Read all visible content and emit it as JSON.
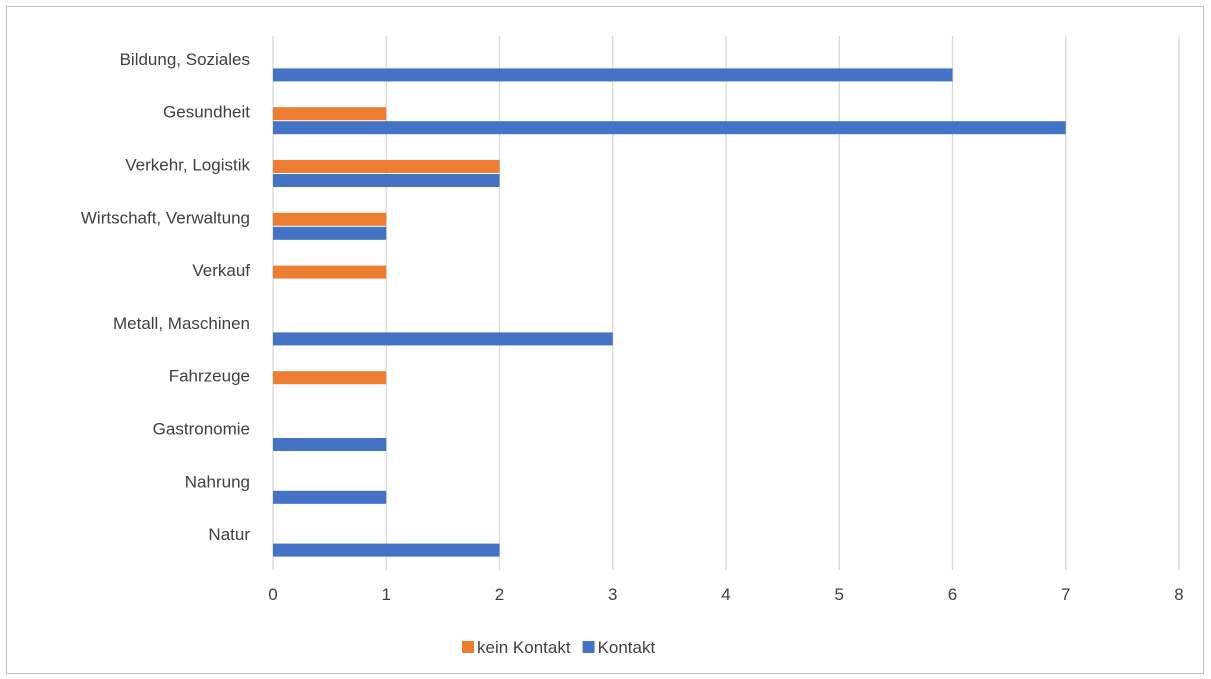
{
  "chart_data": {
    "type": "bar",
    "orientation": "horizontal",
    "categories": [
      "Bildung, Soziales",
      "Gesundheit",
      "Verkehr, Logistik",
      "Wirtschaft, Verwaltung",
      "Verkauf",
      "Metall, Maschinen",
      "Fahrzeuge",
      "Gastronomie",
      "Nahrung",
      "Natur"
    ],
    "series": [
      {
        "name": "kein Kontakt",
        "color": "#ed7d31",
        "values": [
          0,
          1,
          2,
          1,
          1,
          0,
          1,
          0,
          0,
          0
        ]
      },
      {
        "name": "Kontakt",
        "color": "#4472c4",
        "values": [
          6,
          7,
          2,
          1,
          0,
          3,
          0,
          1,
          1,
          2
        ]
      }
    ],
    "xlim": [
      0,
      8
    ],
    "xticks": [
      "0",
      "1",
      "2",
      "3",
      "4",
      "5",
      "6",
      "7",
      "8"
    ],
    "grid": "vertical",
    "legend": "bottom",
    "title": "",
    "xlabel": "",
    "ylabel": ""
  }
}
